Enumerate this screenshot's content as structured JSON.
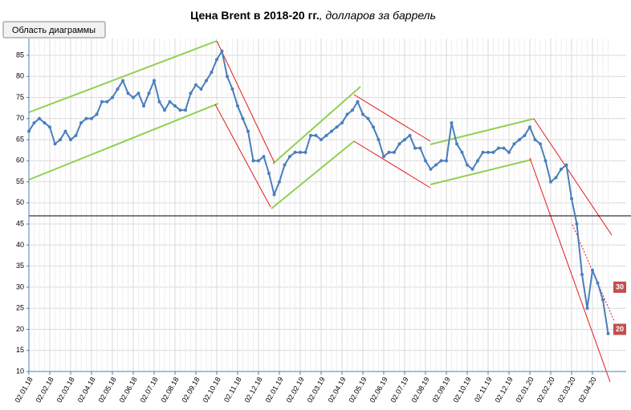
{
  "chart_data": {
    "type": "line",
    "title": "Цена Brent в 2018-20 гг.",
    "subtitle": ", долларов за баррель",
    "tooltip": "Область диаграммы",
    "categories": [
      "02.01.18",
      null,
      null,
      null,
      "02.02.18",
      null,
      null,
      null,
      "02.03.18",
      null,
      null,
      null,
      "02.04.18",
      null,
      null,
      null,
      "02.05.18",
      null,
      null,
      null,
      "02.06.18",
      null,
      null,
      null,
      "02.07.18",
      null,
      null,
      null,
      "02.08.18",
      null,
      null,
      null,
      "02.09.18",
      null,
      null,
      null,
      "02.10.18",
      null,
      null,
      null,
      "02.11.18",
      null,
      null,
      null,
      "02.12.18",
      null,
      null,
      null,
      "02.01.19",
      null,
      null,
      null,
      "02.02.19",
      null,
      null,
      null,
      "02.03.19",
      null,
      null,
      null,
      "02.04.19",
      null,
      null,
      null,
      "02.05.19",
      null,
      null,
      null,
      "02.06.19",
      null,
      null,
      null,
      "02.07.19",
      null,
      null,
      null,
      "02.08.19",
      null,
      null,
      null,
      "02.09.19",
      null,
      null,
      null,
      "02.10.19",
      null,
      null,
      null,
      "02.11.19",
      null,
      null,
      null,
      "02.12.19",
      null,
      null,
      null,
      "02.01.20",
      null,
      null,
      null,
      "02.02.20",
      null,
      null,
      null,
      "02.03.20",
      null,
      null,
      null,
      "02.04.20",
      null,
      null,
      null
    ],
    "series": [
      {
        "color": "#4a7ebb",
        "values": [
          67,
          69,
          70,
          69,
          68,
          64,
          65,
          67,
          65,
          66,
          69,
          70,
          70,
          71,
          74,
          74,
          75,
          77,
          79,
          76,
          75,
          76,
          73,
          76,
          79,
          74,
          72,
          74,
          73,
          72,
          72,
          76,
          78,
          77,
          79,
          81,
          84,
          86,
          80,
          77,
          73,
          70,
          67,
          60,
          60,
          61,
          57,
          52,
          55,
          59,
          61,
          62,
          62,
          62,
          66,
          66,
          65,
          66,
          67,
          68,
          69,
          71,
          72,
          74,
          71,
          70,
          68,
          65,
          61,
          62,
          62,
          64,
          65,
          66,
          63,
          63,
          60,
          58,
          59,
          60,
          60,
          69,
          64,
          62,
          59,
          58,
          60,
          62,
          62,
          62,
          63,
          63,
          62,
          64,
          65,
          66,
          68,
          65,
          64,
          60,
          55,
          56,
          58,
          59,
          51,
          45,
          33,
          25,
          34,
          31,
          27,
          19
        ]
      }
    ],
    "ylim": [
      10,
      89
    ],
    "yticks": [
      10,
      15,
      20,
      25,
      30,
      35,
      40,
      45,
      50,
      55,
      60,
      65,
      70,
      75,
      80,
      85
    ],
    "annotations": [
      30,
      20
    ],
    "annotation_color": "#c0504d",
    "grid": true
  }
}
